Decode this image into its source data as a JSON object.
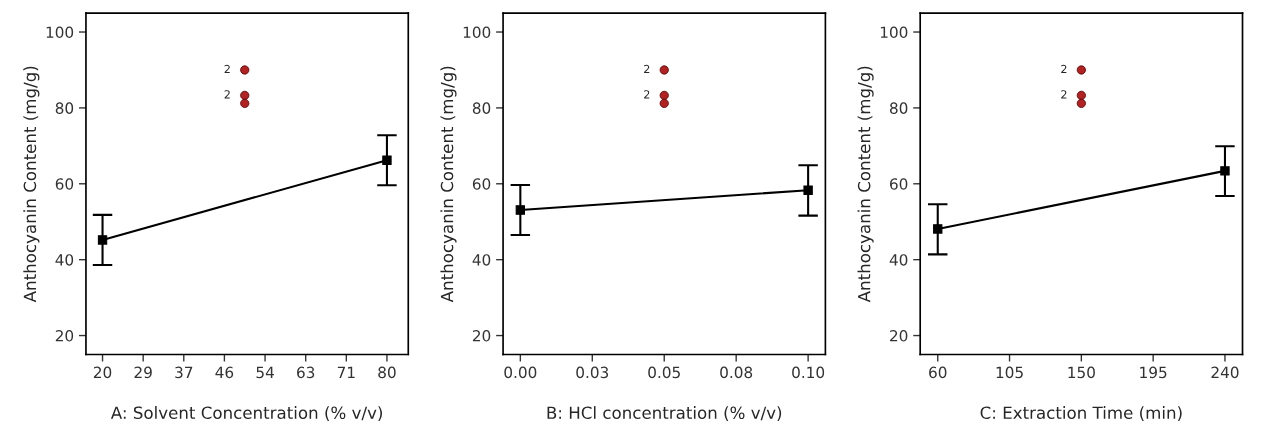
{
  "chart_data": [
    {
      "type": "line",
      "xlabel": "A: Solvent Concentration (% v/v)",
      "ylabel": "Anthocyanin Content (mg/g)",
      "xlim": [
        16.5,
        84.5
      ],
      "ylim": [
        15,
        105
      ],
      "xticks": [
        20,
        {
          "value": 28.57,
          "label": "29"
        },
        {
          "value": 37.14,
          "label": "37"
        },
        {
          "value": 45.71,
          "label": "46"
        },
        {
          "value": 54.29,
          "label": "54"
        },
        {
          "value": 62.86,
          "label": "63"
        },
        {
          "value": 71.43,
          "label": "71"
        },
        80
      ],
      "yticks": [
        20,
        40,
        60,
        80,
        100
      ],
      "grid": false,
      "marker": "square",
      "line_style": "solid",
      "series": [
        {
          "color": "#000000",
          "x": [
            20,
            80
          ],
          "values": [
            45.2,
            66.2
          ],
          "errors": [
            [
              38.6,
              51.8
            ],
            [
              59.6,
              72.8
            ]
          ]
        },
        {
          "type": "scatter",
          "color": "#b22222",
          "marker": "circle",
          "x": [
            50,
            50,
            50
          ],
          "values": [
            90,
            83.3,
            81.2
          ]
        }
      ],
      "annotations": [
        {
          "text": "2",
          "x": 50,
          "y": 90
        },
        {
          "text": "2",
          "x": 50,
          "y": 83.3
        }
      ]
    },
    {
      "type": "line",
      "xlabel": "B: HCl concentration (% v/v)",
      "ylabel": "Anthocyanin Content (mg/g)",
      "xlim": [
        -0.006,
        0.106
      ],
      "ylim": [
        15,
        105
      ],
      "xticks": [
        {
          "value": 0,
          "label": "0.00"
        },
        {
          "value": 0.025,
          "label": "0.03"
        },
        {
          "value": 0.05,
          "label": "0.05"
        },
        {
          "value": 0.075,
          "label": "0.08"
        },
        {
          "value": 0.1,
          "label": "0.10"
        }
      ],
      "yticks": [
        20,
        40,
        60,
        80,
        100
      ],
      "grid": false,
      "marker": "square",
      "line_style": "solid",
      "series": [
        {
          "color": "#000000",
          "x": [
            0,
            0.1
          ],
          "values": [
            53.1,
            58.3
          ],
          "errors": [
            [
              46.5,
              59.7
            ],
            [
              51.6,
              64.9
            ]
          ]
        },
        {
          "type": "scatter",
          "color": "#b22222",
          "marker": "circle",
          "x": [
            0.05,
            0.05,
            0.05
          ],
          "values": [
            90,
            83.3,
            81.2
          ]
        }
      ],
      "annotations": [
        {
          "text": "2",
          "x": 0.05,
          "y": 90
        },
        {
          "text": "2",
          "x": 0.05,
          "y": 83.3
        }
      ]
    },
    {
      "type": "line",
      "xlabel": "C: Extraction Time (min)",
      "ylabel": "Anthocyanin Content (mg/g)",
      "xlim": [
        49,
        251
      ],
      "ylim": [
        15,
        105
      ],
      "xticks": [
        60,
        105,
        150,
        195,
        240
      ],
      "yticks": [
        20,
        40,
        60,
        80,
        100
      ],
      "grid": false,
      "marker": "square",
      "line_style": "solid",
      "series": [
        {
          "color": "#000000",
          "x": [
            60,
            240
          ],
          "values": [
            48.1,
            63.4
          ],
          "errors": [
            [
              41.4,
              54.6
            ],
            [
              56.8,
              69.9
            ]
          ]
        },
        {
          "type": "scatter",
          "color": "#b22222",
          "marker": "circle",
          "x": [
            150,
            150,
            150
          ],
          "values": [
            90,
            83.3,
            81.2
          ]
        }
      ],
      "annotations": [
        {
          "text": "2",
          "x": 150,
          "y": 90
        },
        {
          "text": "2",
          "x": 150,
          "y": 83.3
        }
      ]
    }
  ]
}
